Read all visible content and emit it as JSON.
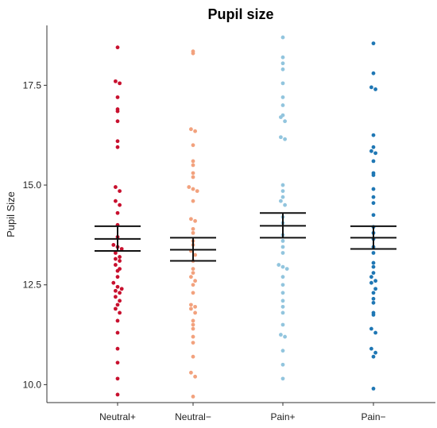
{
  "chart_data": {
    "type": "scatter",
    "title": "Pupil size",
    "xlabel": "",
    "ylabel": "Pupil Size",
    "categories": [
      "Neutral+",
      "Neutral−",
      "Pain+",
      "Pain−"
    ],
    "ylim": [
      9.55,
      19.0
    ],
    "yticks": [
      10.0,
      12.5,
      15.0,
      17.5
    ],
    "ytick_labels": [
      "10.0",
      "12.5",
      "15.0",
      "17.5"
    ],
    "grid": false,
    "legend": "none",
    "colors": [
      "#c8102e",
      "#f2a27e",
      "#92c5de",
      "#1f77b4"
    ],
    "series": [
      {
        "category": "Neutral+",
        "mean": 13.65,
        "ci": [
          13.35,
          13.97
        ],
        "values": [
          18.45,
          17.6,
          17.55,
          17.2,
          16.9,
          16.85,
          16.6,
          16.1,
          15.95,
          14.95,
          14.85,
          14.6,
          14.5,
          14.3,
          14.0,
          13.7,
          13.5,
          13.45,
          13.4,
          13.3,
          13.2,
          13.15,
          13.1,
          13.0,
          12.9,
          12.85,
          12.7,
          12.55,
          12.45,
          12.4,
          12.35,
          12.3,
          12.2,
          12.1,
          12.0,
          11.9,
          11.8,
          11.6,
          11.3,
          10.9,
          10.55,
          10.15,
          9.75
        ]
      },
      {
        "category": "Neutral−",
        "mean": 13.38,
        "ci": [
          13.1,
          13.68
        ],
        "values": [
          18.35,
          18.3,
          16.4,
          16.35,
          16.0,
          15.6,
          15.5,
          15.3,
          15.2,
          14.95,
          14.9,
          14.85,
          14.6,
          14.15,
          14.1,
          13.9,
          13.8,
          13.6,
          13.5,
          13.35,
          13.25,
          13.1,
          12.9,
          12.8,
          12.7,
          12.6,
          12.5,
          12.3,
          12.0,
          11.95,
          11.9,
          11.8,
          11.6,
          11.5,
          11.4,
          11.2,
          11.05,
          10.7,
          10.3,
          10.2,
          9.7
        ]
      },
      {
        "category": "Pain+",
        "mean": 13.98,
        "ci": [
          13.68,
          14.3
        ],
        "values": [
          18.7,
          18.2,
          18.05,
          17.9,
          17.55,
          17.2,
          17.0,
          16.75,
          16.7,
          16.6,
          16.2,
          16.15,
          15.0,
          14.85,
          14.7,
          14.6,
          14.5,
          14.2,
          14.05,
          13.75,
          13.6,
          13.45,
          13.3,
          13.0,
          12.95,
          12.9,
          12.7,
          12.5,
          12.3,
          12.1,
          11.95,
          11.8,
          11.5,
          11.25,
          11.2,
          10.85,
          10.5,
          10.15
        ]
      },
      {
        "category": "Pain−",
        "mean": 13.68,
        "ci": [
          13.4,
          13.97
        ],
        "values": [
          18.55,
          17.8,
          17.45,
          17.4,
          16.25,
          15.95,
          15.85,
          15.8,
          15.6,
          15.3,
          15.25,
          14.9,
          14.7,
          14.55,
          14.25,
          13.95,
          13.8,
          13.65,
          13.45,
          13.3,
          13.05,
          12.95,
          12.8,
          12.7,
          12.6,
          12.55,
          12.4,
          12.3,
          12.15,
          12.05,
          11.8,
          11.75,
          11.4,
          11.3,
          10.9,
          10.8,
          10.7,
          9.9
        ]
      }
    ]
  }
}
